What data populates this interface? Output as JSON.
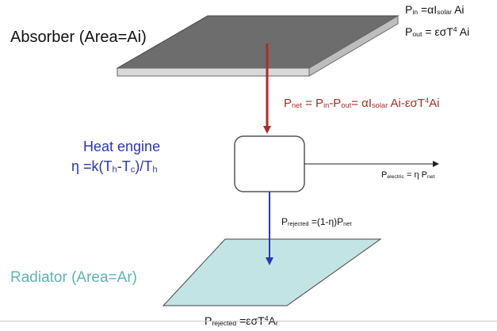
{
  "colors": {
    "absorber_top": "#6d6d6d",
    "absorber_edge": "#d9d9d9",
    "radiator_fill": "#c3e4e4",
    "red_arrow": "#b02a2a",
    "blue_arrow": "#2838b0",
    "heat_engine_text": "#2a34b5",
    "radiator_text": "#5fb3b3",
    "formula_red": "#b02a2a"
  },
  "labels": {
    "absorber": "Absorber (Area=Ai)",
    "heat_engine": "Heat engine",
    "radiator": "Radiator (Area=Ar)"
  },
  "formulas": {
    "p_in": {
      "lhs": "P",
      "lhs_sub": "in",
      "eq": " =αI",
      "eq_sub": "solar",
      "rhs": " Ai"
    },
    "p_out": {
      "lhs": "P",
      "lhs_sub": "out",
      "eq": " = εσT",
      "eq_sup": "4",
      "rhs": " Ai"
    },
    "p_net": {
      "a": "P",
      "a_sub": "net",
      "b": " = P",
      "b_sub": "in",
      "c": "-P",
      "c_sub": "out",
      "d": "= αI",
      "d_sub": "solar",
      "e": " Ai-εσT",
      "e_sup": "4",
      "f": "Ai"
    },
    "eta": {
      "a": "η =k(T",
      "a_sub": "h",
      "b": "-T",
      "b_sub": "c",
      "c": ")/T",
      "c_sub": "h"
    },
    "p_electric": {
      "a": "P",
      "a_sub": "electric",
      "b": " = η P",
      "b_sub": "net"
    },
    "p_rejected_eng": {
      "a": "P",
      "a_sub": "rejected",
      "b": " =(1-η)P",
      "b_sub": "net"
    },
    "p_rejected_rad": {
      "a": "P",
      "a_sub": "rejected",
      "b": " =εσT",
      "b_sup": "4",
      "c": "A",
      "c_sub": "r"
    }
  }
}
